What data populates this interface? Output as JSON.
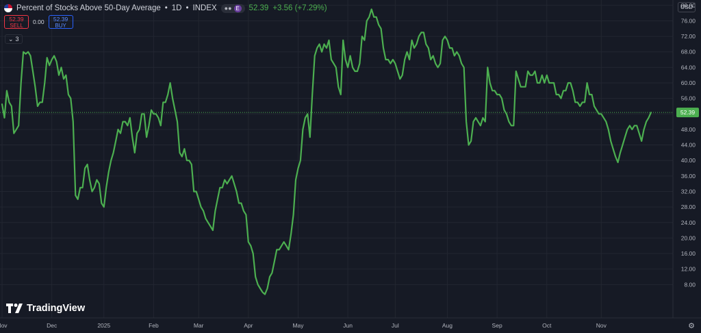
{
  "header": {
    "title": "Percent of Stocks Above 50-Day Average",
    "interval": "1D",
    "exchange": "INDEX",
    "separator": "•",
    "last_price": "52.39",
    "change": "+3.56 (+7.29%)",
    "pill_badge": "E"
  },
  "trade": {
    "sell_price": "52.39",
    "sell_label": "SELL",
    "spread": "0.00",
    "buy_price": "52.39",
    "buy_label": "BUY"
  },
  "indicators_toggle": {
    "count": "3"
  },
  "currency": "USD",
  "logo": {
    "text": "TradingView"
  },
  "colors": {
    "background": "#161a25",
    "line": "#4caf50",
    "grid": "#222631",
    "axis_text": "#b2b5be",
    "price_tag": "#4caf50",
    "sell": "#f23645",
    "buy": "#2962ff"
  },
  "chart_data": {
    "type": "line",
    "ylim": [
      0,
      82
    ],
    "y_ticks": [
      "8.00",
      "12.00",
      "16.00",
      "20.00",
      "24.00",
      "28.00",
      "32.00",
      "36.00",
      "40.00",
      "44.00",
      "48.00",
      "52.00",
      "56.00",
      "60.00",
      "64.00",
      "68.00",
      "72.00",
      "76.00",
      "80.00"
    ],
    "x_ticks": [
      {
        "label": "Nov",
        "index": 0
      },
      {
        "label": "Dec",
        "index": 21
      },
      {
        "label": "2025",
        "index": 43
      },
      {
        "label": "Feb",
        "index": 64
      },
      {
        "label": "Mar",
        "index": 83
      },
      {
        "label": "Apr",
        "index": 104
      },
      {
        "label": "May",
        "index": 125
      },
      {
        "label": "Jun",
        "index": 146
      },
      {
        "label": "Jul",
        "index": 166
      },
      {
        "label": "Aug",
        "index": 188
      },
      {
        "label": "Sep",
        "index": 209
      },
      {
        "label": "Oct",
        "index": 230
      },
      {
        "label": "Nov",
        "index": 253
      }
    ],
    "last_value_label": "52.39",
    "series": [
      {
        "values": [
          54.5,
          51,
          58,
          55,
          54,
          47,
          48,
          49,
          60,
          68,
          67.5,
          68,
          67,
          63,
          59,
          54,
          55,
          55,
          60,
          66.5,
          64.5,
          66,
          67,
          65.5,
          62,
          64,
          61,
          62,
          57,
          56,
          50,
          31,
          30,
          33,
          33,
          38,
          39,
          35,
          32,
          33,
          35,
          34,
          29,
          28,
          33,
          37,
          40,
          42,
          45,
          48,
          47,
          50,
          50,
          49,
          51,
          46,
          42,
          47,
          48,
          52,
          52,
          46,
          49,
          53,
          52,
          52,
          51,
          49,
          55,
          55,
          57,
          60,
          56,
          53,
          50,
          42,
          41,
          43,
          40,
          40,
          39,
          32,
          32,
          30,
          28,
          27,
          25,
          24,
          23,
          22,
          27,
          30,
          33,
          33,
          35,
          34,
          35,
          36,
          34,
          32,
          29,
          29,
          27,
          26,
          19,
          18,
          16,
          10,
          8,
          7,
          6,
          5.5,
          7,
          10,
          11,
          14,
          17,
          17,
          18,
          19,
          18,
          17,
          21,
          26,
          35,
          38,
          40,
          48,
          51,
          52,
          46,
          57,
          67,
          69,
          70,
          68,
          70,
          69,
          71,
          66,
          65,
          64,
          59,
          57,
          71,
          66,
          64,
          67,
          64,
          63,
          63,
          65,
          72,
          71,
          76,
          77,
          79,
          77,
          77,
          75,
          74,
          69,
          66,
          66,
          65,
          66,
          65,
          63,
          61,
          62,
          66,
          68,
          66,
          71,
          69,
          70,
          72,
          73,
          73,
          70,
          69,
          66,
          67,
          65,
          64,
          65,
          71,
          72,
          71,
          69,
          69,
          67,
          68,
          67,
          65,
          64,
          50,
          44,
          45,
          50,
          51,
          50,
          49,
          51,
          50,
          64,
          60,
          58,
          58,
          57,
          57,
          56,
          53,
          52,
          50,
          49,
          49,
          63,
          61,
          59,
          59,
          59,
          63,
          62,
          62,
          63,
          60,
          60,
          62,
          60,
          62,
          60,
          60,
          60,
          57,
          57,
          56,
          58,
          58,
          60,
          60,
          58,
          55,
          55,
          54,
          55,
          55,
          60,
          57,
          57,
          54,
          53,
          52,
          52,
          51,
          50,
          48,
          45,
          43,
          41,
          39.5,
          42,
          44,
          46,
          48,
          49,
          48,
          49,
          49,
          47,
          45,
          48,
          50,
          51,
          52.39
        ]
      }
    ]
  }
}
